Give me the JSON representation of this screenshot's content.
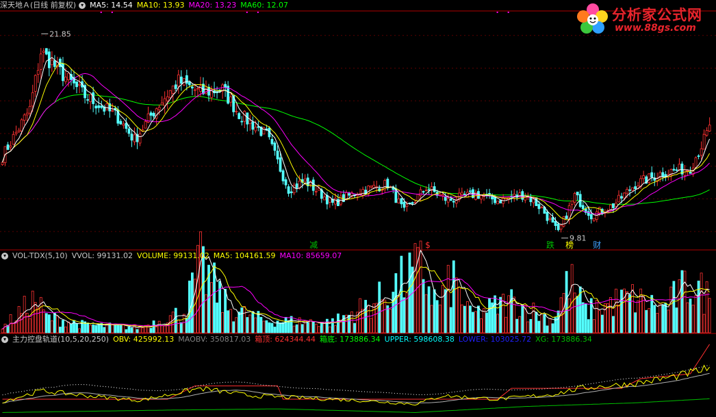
{
  "main_panel": {
    "title": "深天地Ａ(日线 前复权)",
    "indicators": [
      {
        "label": "MA5: 14.54",
        "color": "#ffffff"
      },
      {
        "label": "MA10: 13.93",
        "color": "#ffff00"
      },
      {
        "label": "MA20: 13.23",
        "color": "#ff00ff"
      },
      {
        "label": "MA60: 12.07",
        "color": "#00ff00"
      }
    ],
    "high_label": "21.85",
    "low_label": "9.81",
    "signals": [
      {
        "text": "减",
        "color": "#00c000"
      },
      {
        "text": "$",
        "color": "#ff3030"
      },
      {
        "text": "跌",
        "color": "#00c000"
      },
      {
        "text": "榜",
        "color": "#ffff00"
      },
      {
        "text": "财",
        "color": "#40a0ff"
      }
    ]
  },
  "volume_panel": {
    "title": "VOL-TDX(5,10)",
    "indicators": [
      {
        "label": "VVOL: 99131.02",
        "color": "#c8c8c8"
      },
      {
        "label": "VOLUME: 99131.02",
        "color": "#ffff00"
      },
      {
        "label": "MA5: 104161.59",
        "color": "#ffff00"
      },
      {
        "label": "MA10: 85659.07",
        "color": "#ff00ff"
      }
    ]
  },
  "obv_panel": {
    "title": "主力控盘轨道(10,5,20,250)",
    "indicators": [
      {
        "label": "OBV: 425992.13",
        "color": "#ffff00"
      },
      {
        "label": "MAOBV: 350817.03",
        "color": "#808080"
      },
      {
        "label": "箱顶: 624344.44",
        "color": "#ff3030"
      },
      {
        "label": "箱底: 173886.34",
        "color": "#00ff00"
      },
      {
        "label": "UPPER: 598608.38",
        "color": "#00ffff"
      },
      {
        "label": "LOWER: 103025.72",
        "color": "#2020ff"
      },
      {
        "label": "XG: 173886.34",
        "color": "#00c000"
      }
    ]
  },
  "logo": {
    "name": "分析家公式网",
    "url": "www.88gs.com"
  },
  "colors": {
    "up": "#ff3232",
    "down": "#54ffff",
    "ma5": "#ffffff",
    "ma10": "#ffff00",
    "ma20": "#ff00ff",
    "ma60": "#00ff00",
    "divider": "#b00000"
  },
  "chart_data": {
    "type": "candlestick",
    "title": "深天地Ａ(日线 前复权)",
    "price_range_estimate": [
      9.0,
      23.5
    ],
    "price_keypoints": [
      {
        "bar": 0,
        "close": 14.6
      },
      {
        "bar": 10,
        "close": 17.5
      },
      {
        "bar": 14,
        "close": 21.0
      },
      {
        "bar": 22,
        "close": 19.6
      },
      {
        "bar": 30,
        "close": 18.3
      },
      {
        "bar": 42,
        "close": 17.0
      },
      {
        "bar": 48,
        "close": 15.6
      },
      {
        "bar": 56,
        "close": 17.6
      },
      {
        "bar": 64,
        "close": 19.2
      },
      {
        "bar": 72,
        "close": 18.5
      },
      {
        "bar": 80,
        "close": 18.7
      },
      {
        "bar": 86,
        "close": 17.2
      },
      {
        "bar": 96,
        "close": 15.9
      },
      {
        "bar": 104,
        "close": 12.6
      },
      {
        "bar": 110,
        "close": 13.1
      },
      {
        "bar": 120,
        "close": 11.7
      },
      {
        "bar": 130,
        "close": 12.5
      },
      {
        "bar": 140,
        "close": 12.9
      },
      {
        "bar": 146,
        "close": 11.2
      },
      {
        "bar": 154,
        "close": 12.7
      },
      {
        "bar": 162,
        "close": 11.9
      },
      {
        "bar": 172,
        "close": 12.3
      },
      {
        "bar": 180,
        "close": 11.9
      },
      {
        "bar": 190,
        "close": 12.3
      },
      {
        "bar": 196,
        "close": 11.4
      },
      {
        "bar": 202,
        "close": 9.9
      },
      {
        "bar": 208,
        "close": 12.2
      },
      {
        "bar": 214,
        "close": 11.0
      },
      {
        "bar": 222,
        "close": 11.6
      },
      {
        "bar": 230,
        "close": 12.9
      },
      {
        "bar": 240,
        "close": 13.6
      },
      {
        "bar": 250,
        "close": 13.9
      },
      {
        "bar": 257,
        "close": 16.3
      }
    ],
    "volume_keypoints": [
      {
        "bar": 0,
        "vol": 15000
      },
      {
        "bar": 12,
        "vol": 95000
      },
      {
        "bar": 16,
        "vol": 45000
      },
      {
        "bar": 30,
        "vol": 22000
      },
      {
        "bar": 50,
        "vol": 15000
      },
      {
        "bar": 66,
        "vol": 60000
      },
      {
        "bar": 72,
        "vol": 190000
      },
      {
        "bar": 82,
        "vol": 70000
      },
      {
        "bar": 95,
        "vol": 35000
      },
      {
        "bar": 120,
        "vol": 30000
      },
      {
        "bar": 136,
        "vol": 90000
      },
      {
        "bar": 152,
        "vol": 185000
      },
      {
        "bar": 158,
        "vol": 80000
      },
      {
        "bar": 164,
        "vol": 150000
      },
      {
        "bar": 170,
        "vol": 50000
      },
      {
        "bar": 185,
        "vol": 90000
      },
      {
        "bar": 200,
        "vol": 35000
      },
      {
        "bar": 206,
        "vol": 150000
      },
      {
        "bar": 212,
        "vol": 60000
      },
      {
        "bar": 228,
        "vol": 100000
      },
      {
        "bar": 240,
        "vol": 70000
      },
      {
        "bar": 250,
        "vol": 140000
      },
      {
        "bar": 257,
        "vol": 99131
      }
    ],
    "obv_keypoints": [
      {
        "bar": 0,
        "obv": 150000
      },
      {
        "bar": 14,
        "obv": 240000
      },
      {
        "bar": 30,
        "obv": 200000
      },
      {
        "bar": 50,
        "obv": 160000
      },
      {
        "bar": 72,
        "obv": 260000
      },
      {
        "bar": 90,
        "obv": 200000
      },
      {
        "bar": 110,
        "obv": 180000
      },
      {
        "bar": 130,
        "obv": 160000
      },
      {
        "bar": 150,
        "obv": 130000
      },
      {
        "bar": 160,
        "obv": 200000
      },
      {
        "bar": 180,
        "obv": 170000
      },
      {
        "bar": 200,
        "obv": 210000
      },
      {
        "bar": 210,
        "obv": 260000
      },
      {
        "bar": 230,
        "obv": 300000
      },
      {
        "bar": 245,
        "obv": 360000
      },
      {
        "bar": 257,
        "obv": 425992
      }
    ],
    "box_top_keypoints": [
      {
        "bar": 0,
        "v": 170000
      },
      {
        "bar": 60,
        "v": 170000
      },
      {
        "bar": 70,
        "v": 280000
      },
      {
        "bar": 100,
        "v": 280000
      },
      {
        "bar": 102,
        "v": 170000
      },
      {
        "bar": 180,
        "v": 170000
      },
      {
        "bar": 185,
        "v": 260000
      },
      {
        "bar": 225,
        "v": 260000
      },
      {
        "bar": 232,
        "v": 340000
      },
      {
        "bar": 250,
        "v": 380000
      },
      {
        "bar": 257,
        "v": 624344
      }
    ],
    "box_bottom_keypoints": [
      {
        "bar": 0,
        "v": 60000
      },
      {
        "bar": 60,
        "v": 80000
      },
      {
        "bar": 100,
        "v": 90000
      },
      {
        "bar": 150,
        "v": 60000
      },
      {
        "bar": 190,
        "v": 110000
      },
      {
        "bar": 230,
        "v": 140000
      },
      {
        "bar": 257,
        "v": 173886
      }
    ]
  }
}
